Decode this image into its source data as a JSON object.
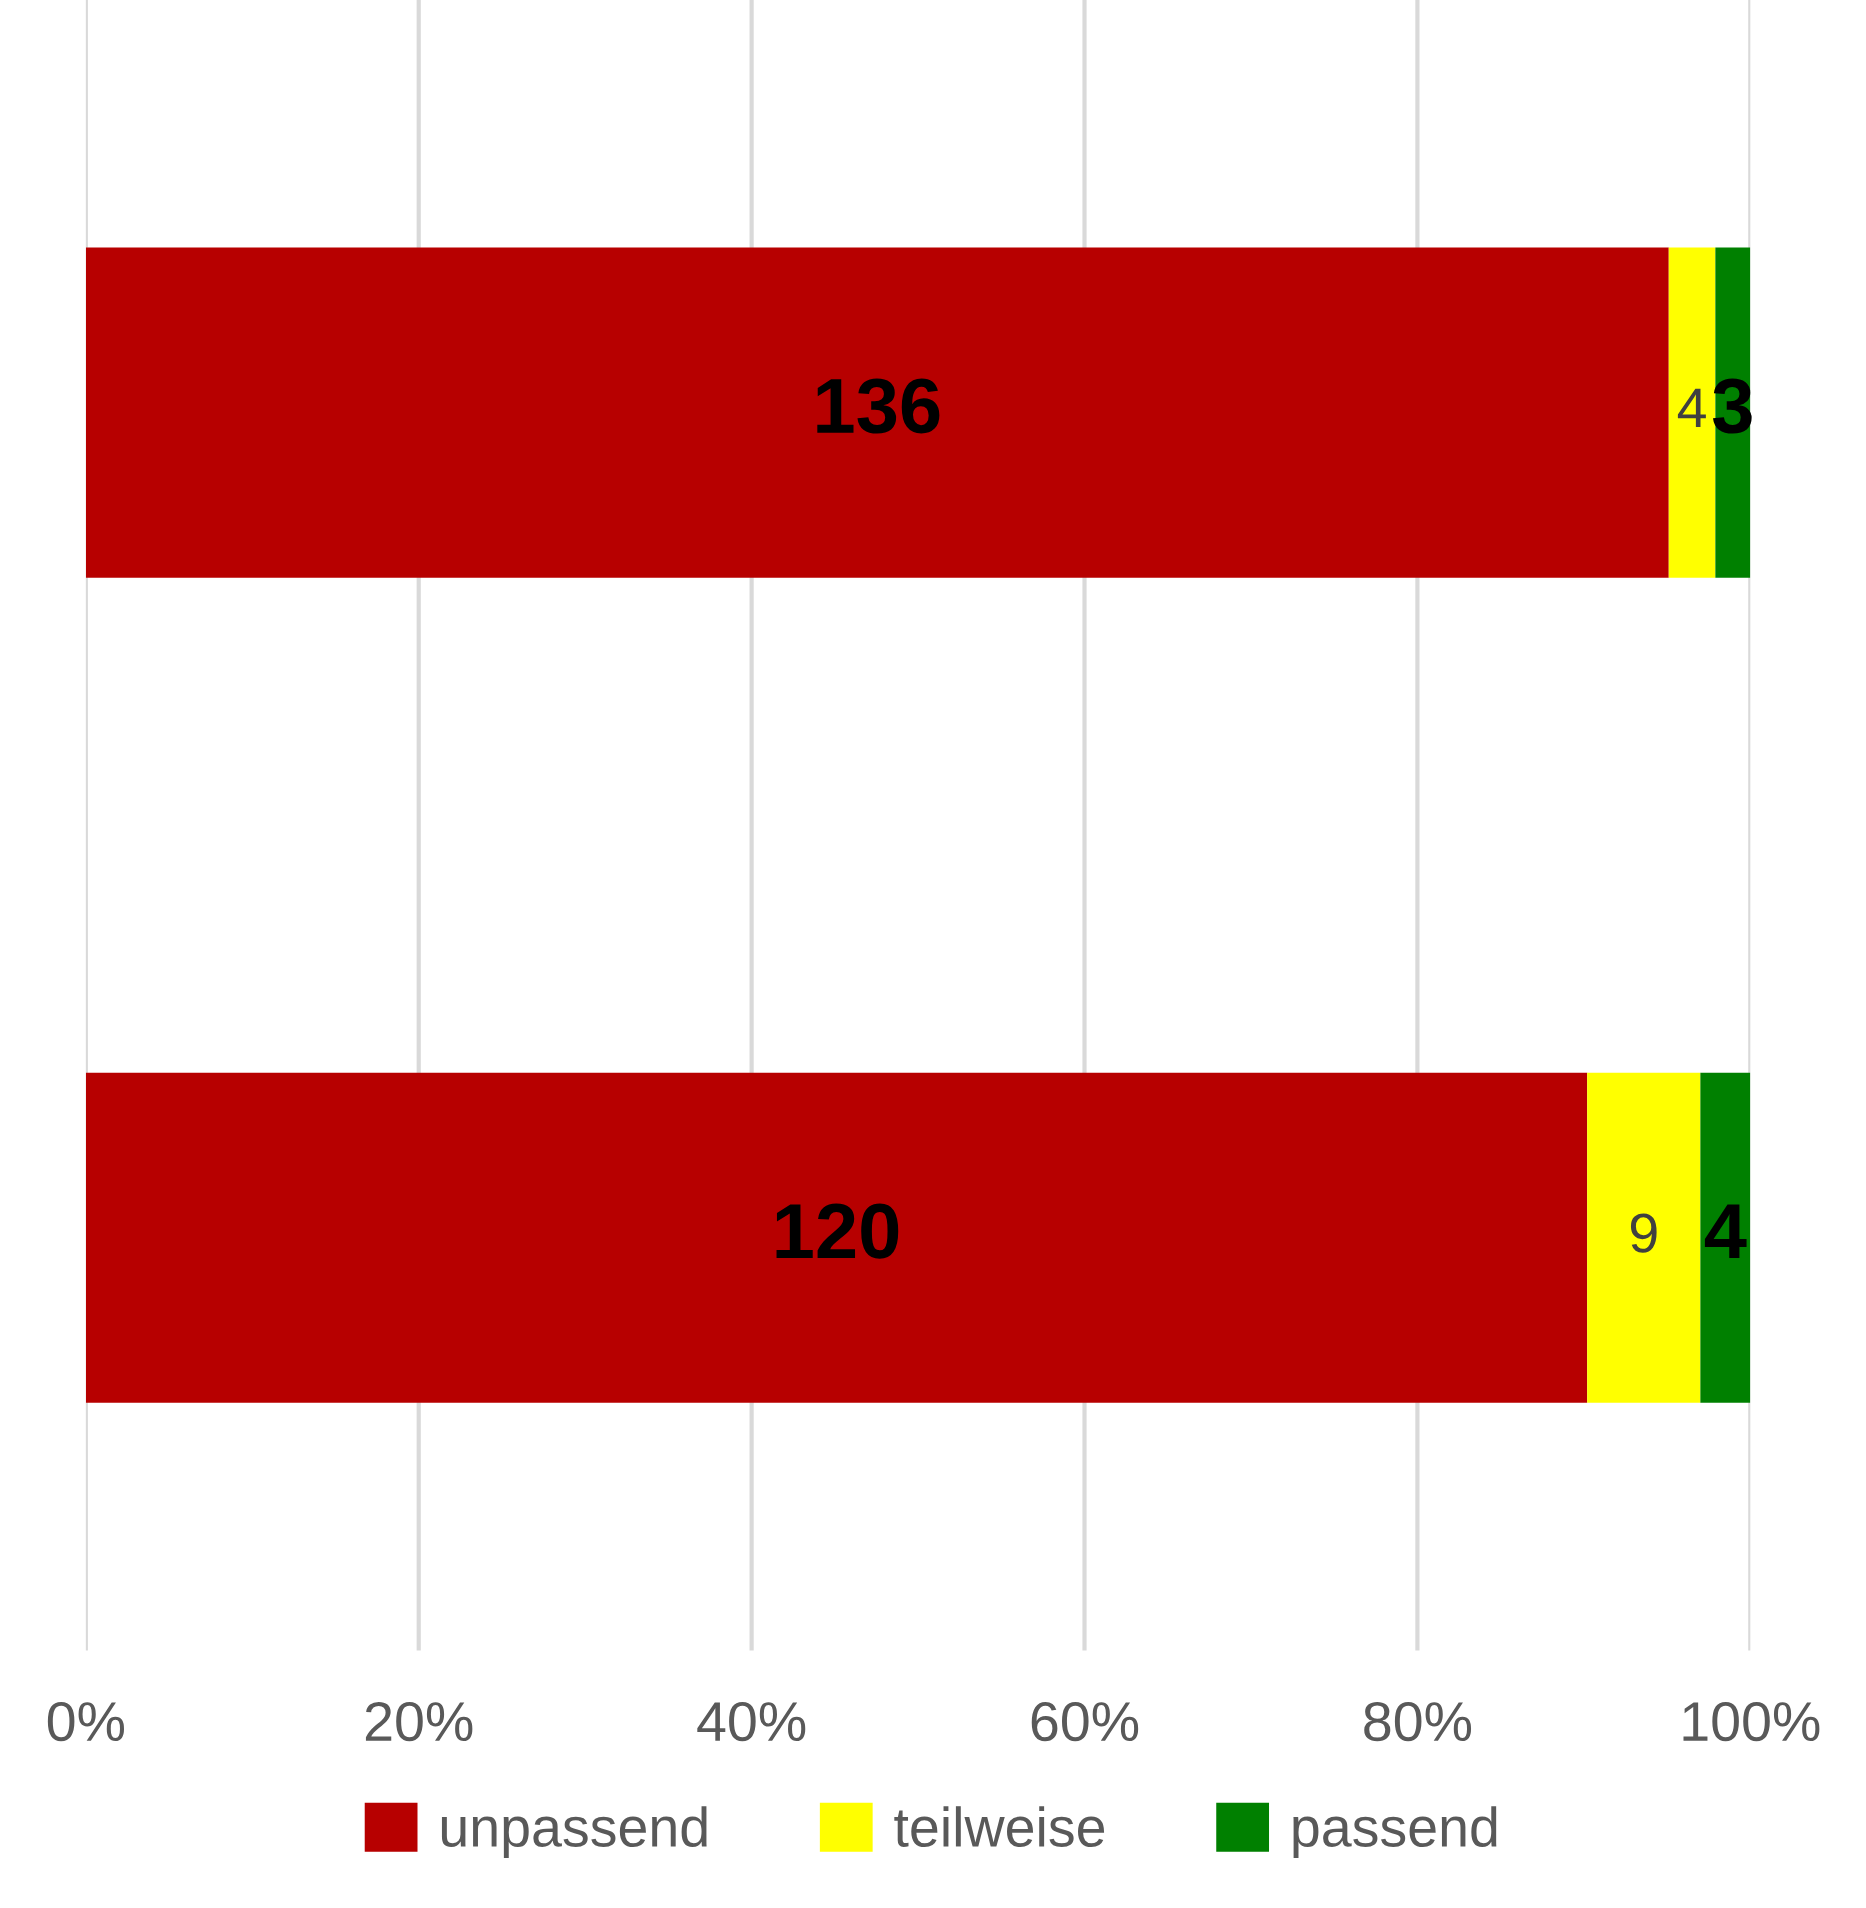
{
  "chart_data": {
    "type": "bar",
    "orientation": "horizontal",
    "stacked": true,
    "categories": [
      null,
      null
    ],
    "series": [
      {
        "name": "unpassend",
        "color": "#b70000",
        "values": [
          95.1,
          90.2
        ]
      },
      {
        "name": "teilweise",
        "color": "#ffff00",
        "values": [
          2.8,
          6.8
        ]
      },
      {
        "name": "passend",
        "color": "#008000",
        "values": [
          2.1,
          3.0
        ]
      }
    ],
    "annotations": [
      "136",
      "4",
      "3",
      "120",
      "9",
      "4"
    ],
    "xlim": [
      0,
      100
    ],
    "xticks": [
      {
        "value": 0,
        "label": "0%"
      },
      {
        "value": 20,
        "label": "20%"
      },
      {
        "value": 40,
        "label": "40%"
      },
      {
        "value": 60,
        "label": "60%"
      },
      {
        "value": 80,
        "label": "80%"
      },
      {
        "value": 100,
        "label": "100%"
      }
    ],
    "grid": "x",
    "legend": "bottom",
    "tick_labels": "x"
  }
}
